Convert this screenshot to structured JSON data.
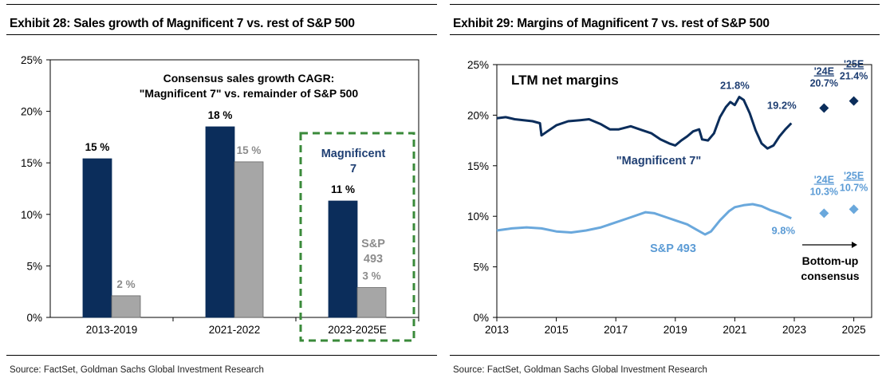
{
  "exhibit28": {
    "title": "Exhibit 28: Sales growth of Magnificent 7 vs. rest of S&P 500",
    "source": "Source: FactSet, Goldman Sachs Global Investment Research"
  },
  "exhibit29": {
    "title": "Exhibit 29: Margins of Magnificent 7 vs. rest of S&P 500",
    "source": "Source: FactSet, Goldman Sachs Global Investment Research"
  },
  "chart_data": [
    {
      "type": "bar",
      "title": "Consensus sales growth CAGR:",
      "subtitle": "\"Magnificent 7\" vs. remainder of S&P 500",
      "categories": [
        "2013-2019",
        "2021-2022",
        "2023-2025E"
      ],
      "ylim": [
        0,
        25
      ],
      "yticks": [
        "0%",
        "5%",
        "10%",
        "15%",
        "20%",
        "25%"
      ],
      "grid": false,
      "series": [
        {
          "key": "mag7",
          "values": [
            15.4,
            18.5,
            11.3
          ],
          "labels": [
            "15 %",
            "18 %",
            "11 %"
          ],
          "color": "#0b2d5b"
        },
        {
          "key": "sp493",
          "values": [
            2.1,
            15.1,
            2.9
          ],
          "labels": [
            "2 %",
            "15 %",
            "3 %"
          ],
          "color": "#a6a6a6"
        }
      ],
      "annotations": {
        "mag7_line1": "Magnificent",
        "mag7_line2": "7",
        "sp493_line1": "S&P",
        "sp493_line2": "493",
        "highlight_color": "#3a8a3a"
      }
    },
    {
      "type": "line",
      "title": "LTM net margins",
      "ylim": [
        0,
        25
      ],
      "xlim": [
        2013,
        2025.6
      ],
      "yticks": [
        "0%",
        "5%",
        "10%",
        "15%",
        "20%",
        "25%"
      ],
      "xticks": [
        "2013",
        "2015",
        "2017",
        "2019",
        "2021",
        "2023",
        "2025"
      ],
      "grid": false,
      "series": [
        {
          "name": "\"Magnificent 7\"",
          "color": "#0b2d5b",
          "x": [
            2013.0,
            2013.3,
            2013.6,
            2013.9,
            2014.2,
            2014.45,
            2014.5,
            2014.7,
            2015.0,
            2015.4,
            2015.8,
            2016.1,
            2016.5,
            2016.8,
            2017.1,
            2017.5,
            2017.9,
            2018.2,
            2018.5,
            2018.8,
            2019.0,
            2019.2,
            2019.4,
            2019.6,
            2019.8,
            2019.9,
            2020.1,
            2020.3,
            2020.5,
            2020.7,
            2020.85,
            2021.0,
            2021.15,
            2021.3,
            2021.5,
            2021.7,
            2021.9,
            2022.1,
            2022.3,
            2022.5,
            2022.7,
            2022.9
          ],
          "values": [
            19.7,
            19.8,
            19.6,
            19.5,
            19.4,
            19.2,
            18.0,
            18.4,
            19.0,
            19.4,
            19.5,
            19.6,
            19.1,
            18.6,
            18.6,
            18.9,
            18.5,
            18.2,
            17.6,
            17.2,
            17.0,
            17.5,
            17.9,
            18.4,
            18.6,
            17.6,
            17.5,
            18.2,
            19.8,
            20.8,
            21.3,
            21.0,
            21.8,
            21.5,
            20.2,
            18.5,
            17.2,
            16.7,
            17.0,
            17.9,
            18.6,
            19.2
          ]
        },
        {
          "name": "S&P 493",
          "color": "#6aa8dc",
          "x": [
            2013.0,
            2013.5,
            2014.0,
            2014.5,
            2015.0,
            2015.5,
            2016.0,
            2016.5,
            2017.0,
            2017.5,
            2018.0,
            2018.3,
            2018.7,
            2019.0,
            2019.4,
            2019.7,
            2020.0,
            2020.2,
            2020.5,
            2020.8,
            2021.0,
            2021.3,
            2021.6,
            2021.9,
            2022.2,
            2022.5,
            2022.9
          ],
          "values": [
            8.6,
            8.8,
            8.9,
            8.8,
            8.5,
            8.4,
            8.6,
            8.9,
            9.4,
            9.9,
            10.4,
            10.3,
            9.9,
            9.6,
            9.2,
            8.7,
            8.2,
            8.5,
            9.6,
            10.5,
            10.9,
            11.1,
            11.2,
            11.0,
            10.6,
            10.3,
            9.8
          ]
        },
        {
          "name": "'24E / '25E (Magnificent 7)",
          "color": "#0b2d5b",
          "x": [
            2024,
            2025
          ],
          "values": [
            20.7,
            21.4
          ],
          "labels": [
            [
              "'24E",
              "20.7%"
            ],
            [
              "'25E",
              "21.4%"
            ]
          ]
        },
        {
          "name": "'24E / '25E (S&P 493)",
          "color": "#6aa8dc",
          "x": [
            2024,
            2025
          ],
          "values": [
            10.3,
            10.7
          ],
          "labels": [
            [
              "'24E",
              "10.3%"
            ],
            [
              "'25E",
              "10.7%"
            ]
          ]
        }
      ],
      "annotations": {
        "mag7_label": "\"Magnificent 7\"",
        "sp493_label": "S&P 493",
        "peak_label": "21.8%",
        "mag7_last_label": "19.2%",
        "sp493_last_label": "9.8%",
        "consensus_line1": "Bottom-up",
        "consensus_line2": "consensus"
      }
    }
  ]
}
